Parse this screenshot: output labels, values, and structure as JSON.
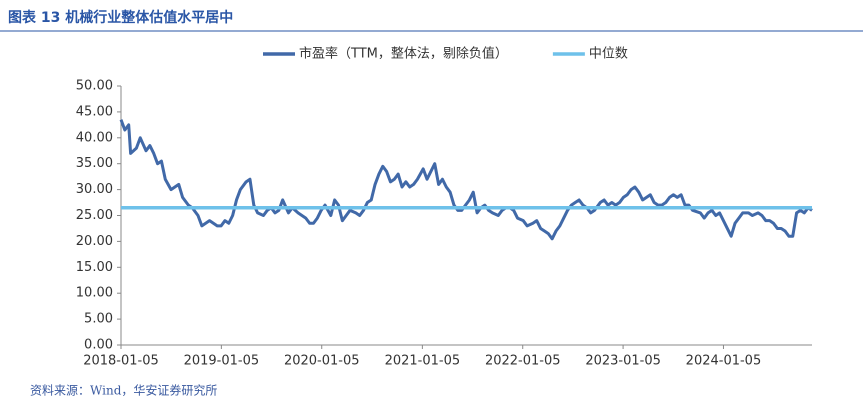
{
  "chart_data": {
    "type": "line",
    "title": "图表 13 机械行业整体估值水平居中",
    "source": "资料来源：Wind，华安证券研究所",
    "x": [
      "2018-01-05",
      "2018-01-19",
      "2018-02-02",
      "2018-02-09",
      "2018-03-02",
      "2018-03-16",
      "2018-04-06",
      "2018-04-20",
      "2018-05-04",
      "2018-05-18",
      "2018-06-01",
      "2018-06-15",
      "2018-07-06",
      "2018-07-20",
      "2018-08-03",
      "2018-08-17",
      "2018-09-07",
      "2018-09-21",
      "2018-10-12",
      "2018-10-26",
      "2018-11-09",
      "2018-11-23",
      "2018-12-07",
      "2018-12-21",
      "2019-01-04",
      "2019-01-18",
      "2019-02-01",
      "2019-02-15",
      "2019-03-01",
      "2019-03-15",
      "2019-04-05",
      "2019-04-19",
      "2019-05-03",
      "2019-05-17",
      "2019-06-07",
      "2019-06-21",
      "2019-07-05",
      "2019-07-19",
      "2019-08-02",
      "2019-08-16",
      "2019-09-06",
      "2019-09-20",
      "2019-10-11",
      "2019-10-25",
      "2019-11-08",
      "2019-11-22",
      "2019-12-06",
      "2019-12-20",
      "2020-01-03",
      "2020-01-17",
      "2020-02-07",
      "2020-02-21",
      "2020-03-06",
      "2020-03-20",
      "2020-04-03",
      "2020-04-17",
      "2020-05-08",
      "2020-05-22",
      "2020-06-05",
      "2020-06-19",
      "2020-07-03",
      "2020-07-17",
      "2020-07-31",
      "2020-08-14",
      "2020-08-28",
      "2020-09-11",
      "2020-09-25",
      "2020-10-09",
      "2020-10-23",
      "2020-11-06",
      "2020-11-20",
      "2020-12-04",
      "2020-12-18",
      "2021-01-08",
      "2021-01-22",
      "2021-02-05",
      "2021-02-19",
      "2021-03-05",
      "2021-03-19",
      "2021-04-02",
      "2021-04-16",
      "2021-04-30",
      "2021-05-14",
      "2021-05-28",
      "2021-06-11",
      "2021-06-25",
      "2021-07-09",
      "2021-07-23",
      "2021-08-06",
      "2021-08-20",
      "2021-09-03",
      "2021-09-17",
      "2021-10-08",
      "2021-10-22",
      "2021-11-05",
      "2021-11-19",
      "2021-12-03",
      "2021-12-17",
      "2022-01-07",
      "2022-01-21",
      "2022-02-11",
      "2022-02-25",
      "2022-03-11",
      "2022-03-25",
      "2022-04-08",
      "2022-04-22",
      "2022-05-06",
      "2022-05-20",
      "2022-06-03",
      "2022-06-17",
      "2022-07-01",
      "2022-07-15",
      "2022-07-29",
      "2022-08-12",
      "2022-08-26",
      "2022-09-09",
      "2022-09-23",
      "2022-10-14",
      "2022-10-28",
      "2022-11-11",
      "2022-11-25",
      "2022-12-09",
      "2022-12-23",
      "2023-01-06",
      "2023-01-20",
      "2023-02-03",
      "2023-02-17",
      "2023-03-03",
      "2023-03-17",
      "2023-03-31",
      "2023-04-14",
      "2023-04-28",
      "2023-05-12",
      "2023-05-26",
      "2023-06-09",
      "2023-06-23",
      "2023-07-07",
      "2023-07-21",
      "2023-08-04",
      "2023-08-18",
      "2023-09-01",
      "2023-09-15",
      "2023-10-13",
      "2023-10-27",
      "2023-11-10",
      "2023-11-24",
      "2023-12-08",
      "2023-12-22",
      "2024-01-05",
      "2024-01-19",
      "2024-02-02",
      "2024-02-16",
      "2024-03-01",
      "2024-03-15",
      "2024-04-05",
      "2024-04-19",
      "2024-05-10",
      "2024-05-24",
      "2024-06-07",
      "2024-06-21",
      "2024-07-05",
      "2024-07-19",
      "2024-08-02",
      "2024-08-16",
      "2024-08-30",
      "2024-09-13",
      "2024-09-27",
      "2024-10-11",
      "2024-10-25",
      "2024-11-08",
      "2024-11-22"
    ],
    "series": [
      {
        "name": "市盈率（TTM，整体法，剔除负值）",
        "color": "#4169a8",
        "width": 3,
        "values": [
          43.5,
          41.5,
          42.5,
          37,
          38,
          40,
          37.5,
          38.5,
          37,
          35,
          35.5,
          32,
          30,
          30.5,
          31,
          28.5,
          27,
          26.5,
          25,
          23,
          23.5,
          24,
          23.5,
          23,
          23,
          24,
          23.5,
          25,
          28,
          30,
          31.5,
          32,
          27,
          25.5,
          25,
          26,
          26.5,
          25.5,
          26,
          28,
          25.5,
          26.5,
          25.5,
          25,
          24.5,
          23.5,
          23.5,
          24.5,
          26,
          27,
          25,
          28,
          27,
          24,
          25,
          26,
          25.5,
          25,
          26,
          27.5,
          28,
          31,
          33,
          34.5,
          33.5,
          31.5,
          32,
          33,
          30.5,
          31.5,
          30.5,
          31,
          32,
          34,
          32,
          33.5,
          35,
          31,
          32,
          30.5,
          29.5,
          27,
          26,
          26,
          27,
          28,
          29.5,
          25.5,
          26.5,
          27,
          26,
          25.5,
          25,
          26,
          26.5,
          26.5,
          26,
          24.5,
          24,
          23,
          23.5,
          24,
          22.5,
          22,
          21.5,
          20.5,
          22,
          23,
          24.5,
          26,
          27,
          27.5,
          28,
          27,
          26.5,
          25.5,
          26,
          27.5,
          28,
          27,
          27.5,
          27,
          27.5,
          28.5,
          29,
          30,
          30.5,
          29.5,
          28,
          28.5,
          29,
          27.5,
          27,
          27,
          27.5,
          28.5,
          29,
          28.5,
          29,
          27,
          27,
          26,
          25.5,
          24.5,
          25.5,
          26,
          25,
          25.5,
          24,
          22.5,
          21,
          23.5,
          24.5,
          25.5,
          25.5,
          25,
          25.5,
          25,
          24,
          24,
          23.5,
          22.5,
          22.5,
          22,
          21,
          21,
          25.5,
          26,
          25.5,
          26.5,
          26
        ]
      },
      {
        "name": "中位数",
        "color": "#6ec1ea",
        "width": 3.5,
        "x": [
          "2018-01-05",
          "2024-11-22"
        ],
        "values": [
          26.5,
          26.5
        ]
      }
    ],
    "xlim": [
      "2018-01-05",
      "2024-11-22"
    ],
    "xticks": [
      "2018-01-05",
      "2019-01-05",
      "2020-01-05",
      "2021-01-05",
      "2022-01-05",
      "2023-01-05",
      "2024-01-05"
    ],
    "ylim": [
      0,
      50
    ],
    "yticks": [
      {
        "value": 0,
        "label": "0.00"
      },
      {
        "value": 5,
        "label": "5.00"
      },
      {
        "value": 10,
        "label": "10.00"
      },
      {
        "value": 15,
        "label": "15.00"
      },
      {
        "value": 20,
        "label": "20.00"
      },
      {
        "value": 25,
        "label": "25.00"
      },
      {
        "value": 30,
        "label": "30.00"
      },
      {
        "value": 35,
        "label": "35.00"
      },
      {
        "value": 40,
        "label": "40.00"
      },
      {
        "value": 45,
        "label": "45.00"
      },
      {
        "value": 50,
        "label": "50.00"
      }
    ],
    "legend": "top"
  }
}
